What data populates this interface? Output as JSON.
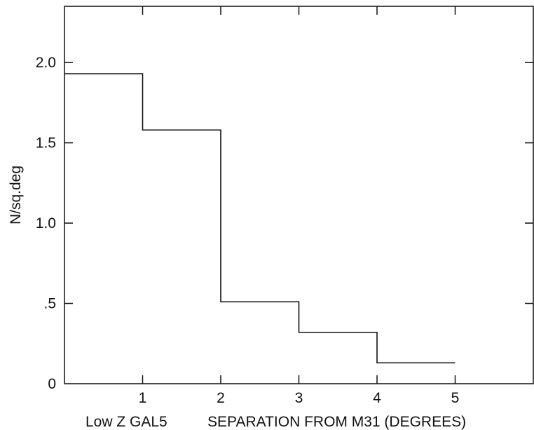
{
  "chart_data": {
    "type": "step",
    "title": "",
    "xlabel": "SEPARATION FROM M31 (DEGREES)",
    "xlabel_prefix": "Low Z GAL5",
    "ylabel": "N/sq.deg",
    "xlim": [
      0,
      6
    ],
    "ylim": [
      0,
      2.35
    ],
    "grid": false,
    "x_ticks": [
      1,
      2,
      3,
      4,
      5
    ],
    "x_tick_labels": [
      "1",
      "2",
      "3",
      "4",
      "5"
    ],
    "y_ticks": [
      0,
      0.5,
      1.0,
      1.5,
      2.0
    ],
    "y_tick_labels": [
      "0",
      ".5",
      "1.0",
      "1.5",
      "2.0"
    ],
    "bins": [
      {
        "x0": 0,
        "x1": 1,
        "value": 1.93
      },
      {
        "x0": 1,
        "x1": 2,
        "value": 1.58
      },
      {
        "x0": 2,
        "x1": 3,
        "value": 0.51
      },
      {
        "x0": 3,
        "x1": 4,
        "value": 0.32
      },
      {
        "x0": 4,
        "x1": 5,
        "value": 0.13
      }
    ],
    "colors": {
      "line": "#111111",
      "background": "#ffffff"
    }
  }
}
